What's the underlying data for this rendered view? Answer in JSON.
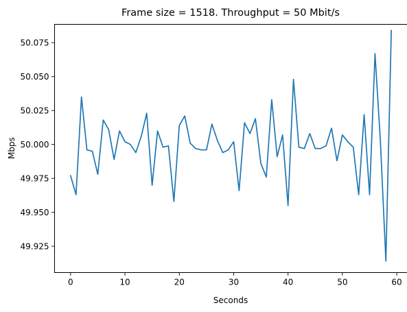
{
  "chart_data": {
    "type": "line",
    "title": "Frame size = 1518. Throughput = 50 Mbit/s",
    "xlabel": "Seconds",
    "ylabel": "Mbps",
    "xlim": [
      -2.95,
      61.95
    ],
    "ylim": [
      49.9056,
      50.0885
    ],
    "xticks": [
      0,
      10,
      20,
      30,
      40,
      50,
      60
    ],
    "xtick_labels": [
      "0",
      "10",
      "20",
      "30",
      "40",
      "50",
      "60"
    ],
    "yticks": [
      49.925,
      49.95,
      49.975,
      50.0,
      50.025,
      50.05,
      50.075
    ],
    "ytick_labels": [
      "49.925",
      "49.950",
      "49.975",
      "50.000",
      "50.025",
      "50.050",
      "50.075"
    ],
    "grid": false,
    "series": [
      {
        "color": "#1f77b4",
        "x": [
          0,
          1,
          2,
          3,
          4,
          5,
          6,
          7,
          8,
          9,
          10,
          11,
          12,
          13,
          14,
          15,
          16,
          17,
          18,
          19,
          20,
          21,
          22,
          23,
          24,
          25,
          26,
          27,
          28,
          29,
          30,
          31,
          32,
          33,
          34,
          35,
          36,
          37,
          38,
          39,
          40,
          41,
          42,
          43,
          44,
          45,
          46,
          47,
          48,
          49,
          50,
          51,
          52,
          53,
          54,
          55,
          56,
          57,
          58,
          59
        ],
        "values": [
          49.977,
          49.963,
          50.035,
          49.996,
          49.995,
          49.978,
          50.018,
          50.011,
          49.989,
          50.01,
          50.002,
          50.0,
          49.994,
          50.006,
          50.023,
          49.97,
          50.01,
          49.998,
          49.999,
          49.958,
          50.014,
          50.021,
          50.001,
          49.997,
          49.996,
          49.996,
          50.015,
          50.003,
          49.994,
          49.996,
          50.002,
          49.966,
          50.016,
          50.008,
          50.019,
          49.986,
          49.976,
          50.033,
          49.991,
          50.007,
          49.955,
          50.048,
          49.998,
          49.997,
          50.008,
          49.997,
          49.997,
          49.999,
          50.012,
          49.988,
          50.007,
          50.002,
          49.998,
          49.963,
          50.022,
          49.963,
          50.067,
          50.002,
          49.914,
          50.084
        ]
      }
    ]
  }
}
